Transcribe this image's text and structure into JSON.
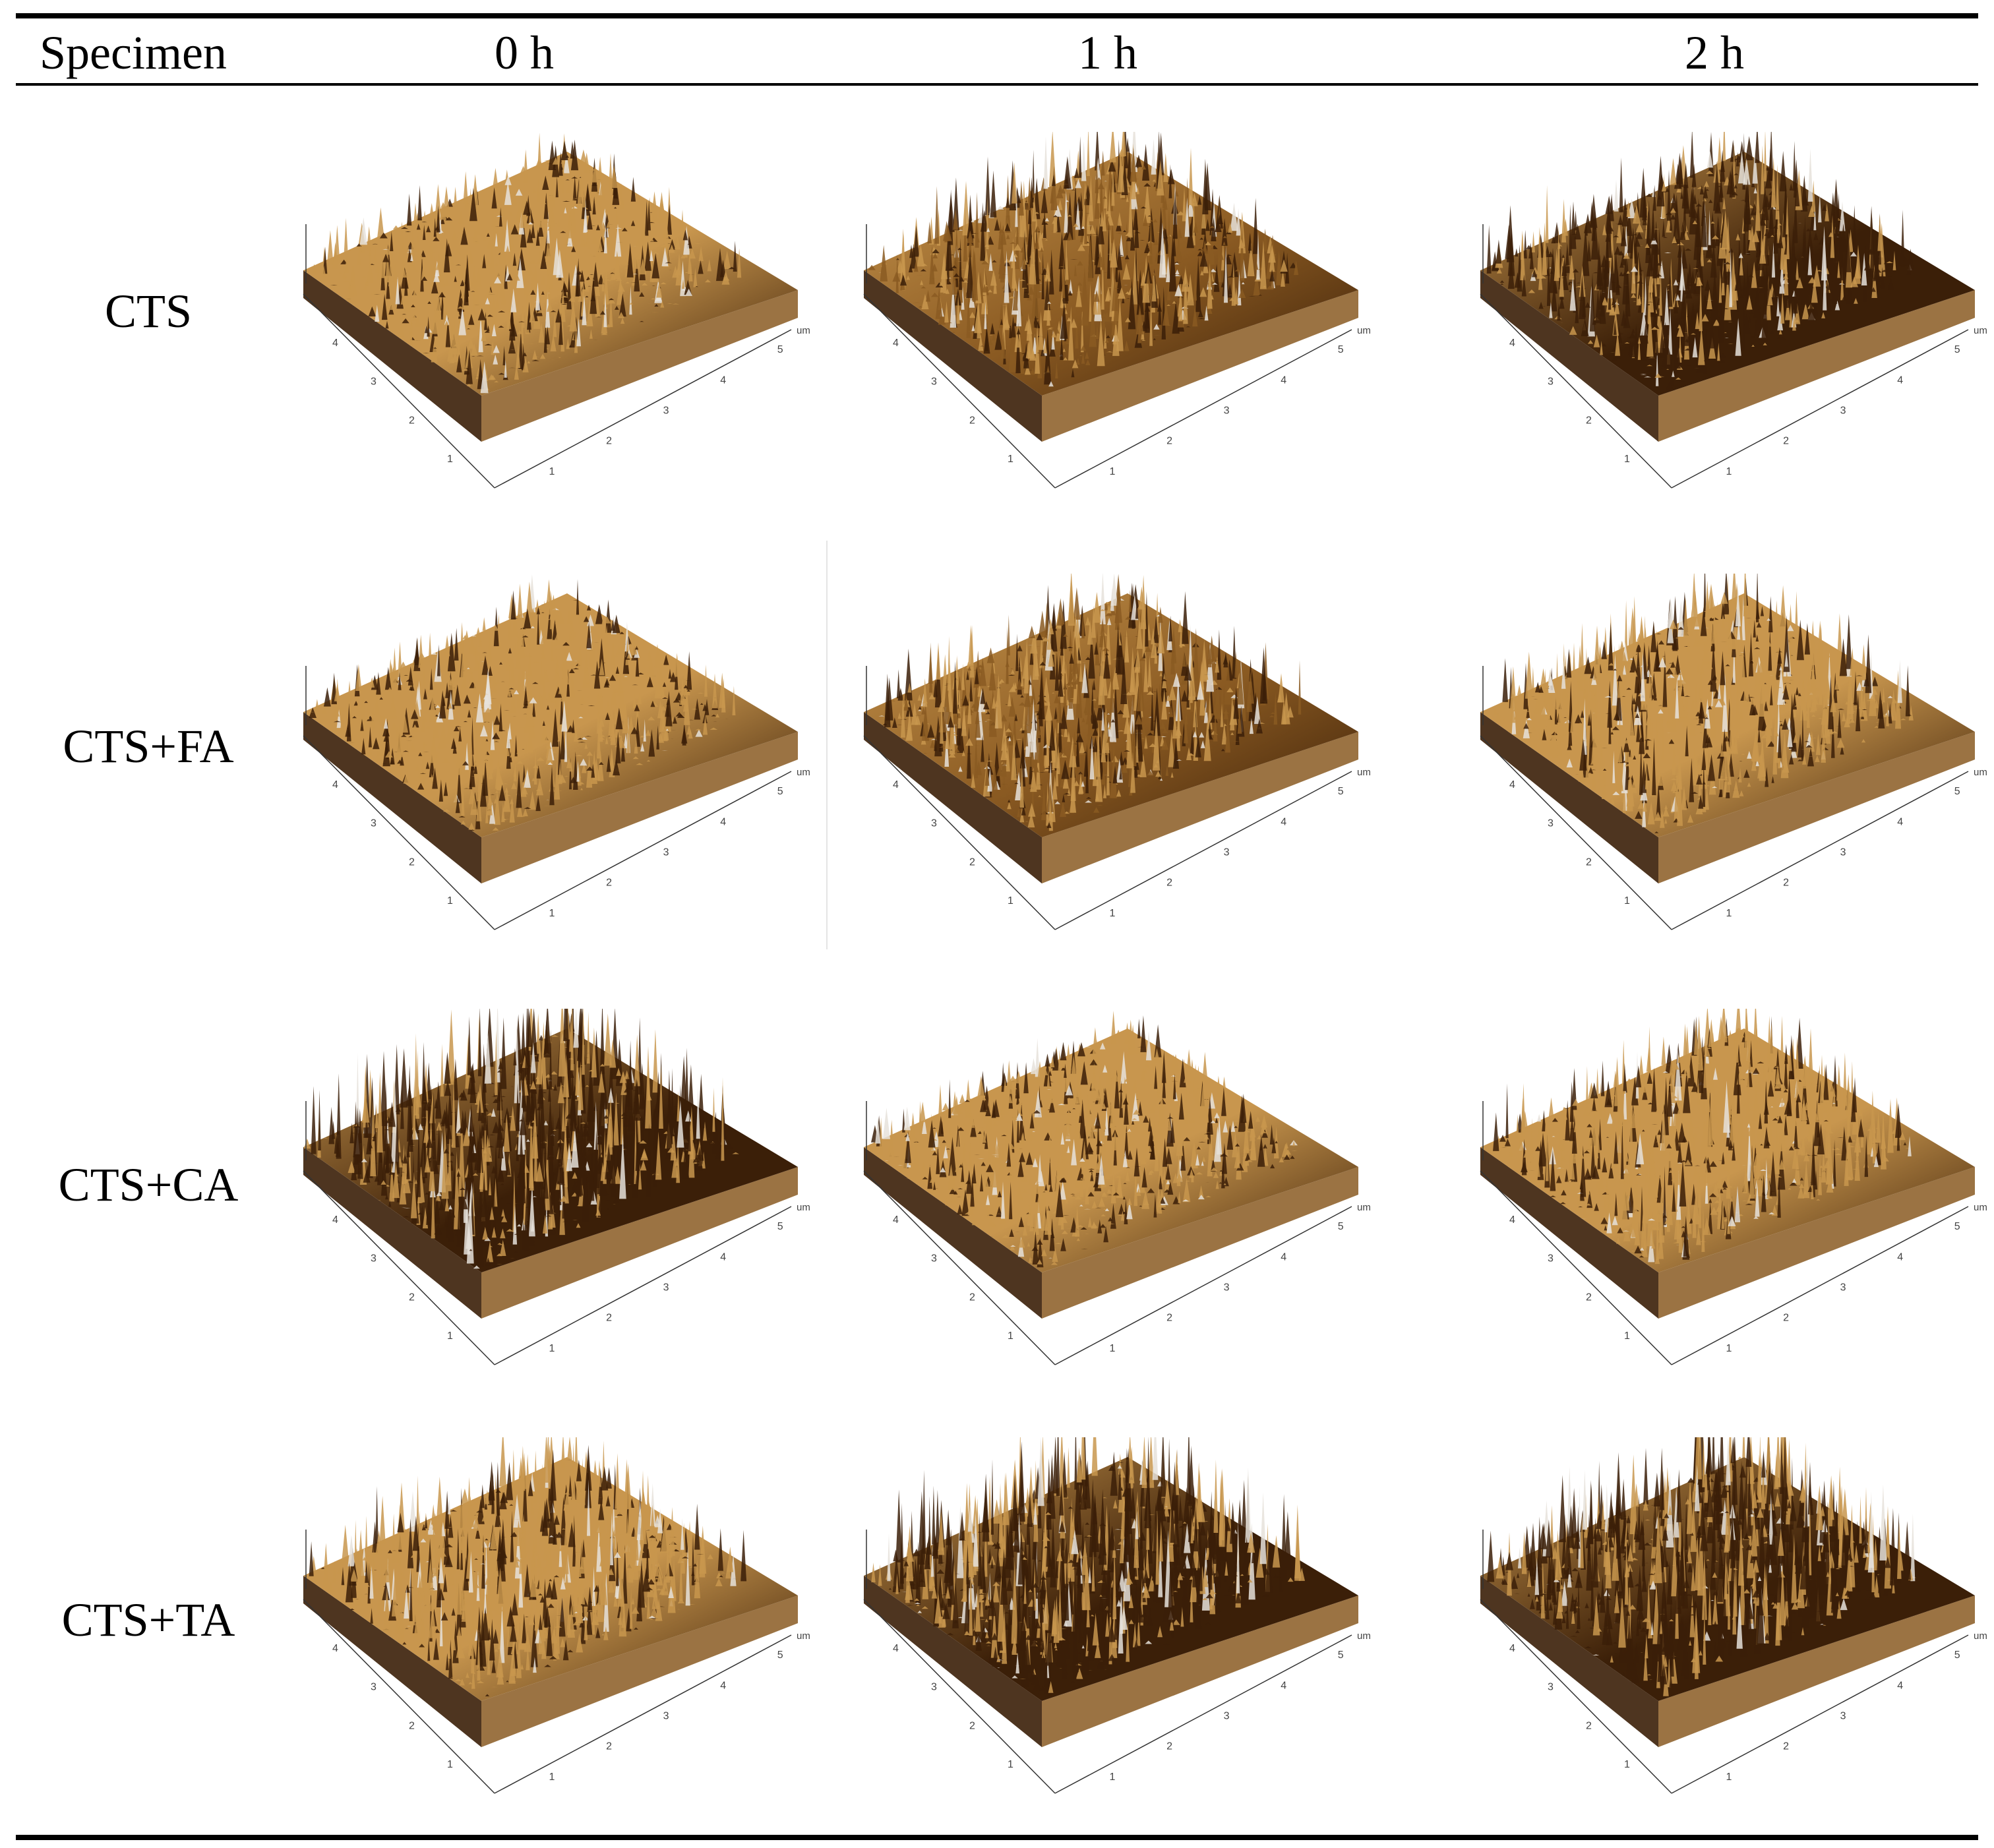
{
  "table": {
    "headers": [
      "Specimen",
      "0 h",
      "1 h",
      "2 h"
    ],
    "rows": [
      {
        "specimen": "CTS"
      },
      {
        "specimen": "CTS+FA"
      },
      {
        "specimen": "CTS+CA"
      },
      {
        "specimen": "CTS+TA"
      }
    ]
  },
  "afm": {
    "tick_values": [
      "1",
      "2",
      "3",
      "4",
      "5"
    ],
    "unit": "um",
    "palette": {
      "dark": "#3b1f08",
      "mid": "#8a5a22",
      "light": "#c8964e",
      "highlight": "#e6e2da"
    },
    "images": [
      [
        {
          "roughness": "low",
          "tone": "light"
        },
        {
          "roughness": "medium",
          "tone": "mid"
        },
        {
          "roughness": "medium",
          "tone": "dark"
        }
      ],
      [
        {
          "roughness": "low",
          "tone": "light"
        },
        {
          "roughness": "medium",
          "tone": "mid"
        },
        {
          "roughness": "medium",
          "tone": "light"
        }
      ],
      [
        {
          "roughness": "high",
          "tone": "dark"
        },
        {
          "roughness": "low",
          "tone": "light"
        },
        {
          "roughness": "medium",
          "tone": "light"
        }
      ],
      [
        {
          "roughness": "medium",
          "tone": "light"
        },
        {
          "roughness": "high",
          "tone": "dark"
        },
        {
          "roughness": "high",
          "tone": "dark"
        }
      ]
    ]
  }
}
